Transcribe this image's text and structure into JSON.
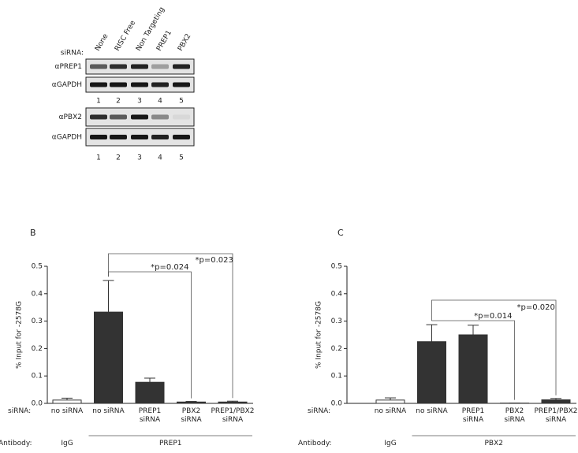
{
  "blot": {
    "siRNA_label": "siRNA:",
    "lanes": [
      "None",
      "RISC Free",
      "Non Targeting",
      "PREP1",
      "PBX2"
    ],
    "panels": [
      {
        "rows": [
          "αPREP1",
          "αGAPDH"
        ],
        "lane_numbers": [
          "1",
          "2",
          "3",
          "4",
          "5"
        ]
      },
      {
        "rows": [
          "αPBX2",
          "αGAPDH"
        ],
        "lane_numbers": [
          "1",
          "2",
          "3",
          "4",
          "5"
        ]
      }
    ]
  },
  "chart_data": [
    {
      "type": "bar",
      "panel": "B",
      "ylabel": "% Input for -2578G",
      "categories": [
        "no siRNA",
        "no siRNA",
        "PREP1\nsiRNA",
        "PBX2\nsiRNA",
        "PREP1/PBX2\nsiRNA"
      ],
      "values": [
        0.012,
        0.333,
        0.077,
        0.005,
        0.005
      ],
      "errors": [
        0.007,
        0.115,
        0.015,
        0.002,
        0.003
      ],
      "colors": [
        "#ffffff",
        "#333333",
        "#333333",
        "#333333",
        "#333333"
      ],
      "ylim": [
        0,
        0.5
      ],
      "yticks": [
        {
          "value": 0,
          "label": "0.0"
        },
        0.1,
        0.2,
        0.3,
        0.4,
        0.5
      ],
      "annotations": [
        "*p=0.023",
        "*p=0.024"
      ],
      "siRNA_label": "siRNA:",
      "antibody_label": "Antibody:",
      "antibodies": [
        "IgG",
        "PREP1"
      ]
    },
    {
      "type": "bar",
      "panel": "C",
      "ylabel": "% Input for -2578G",
      "categories": [
        "no siRNA",
        "no siRNA",
        "PREP1\nsiRNA",
        "PBX2\nsiRNA",
        "PREP1/PBX2\nsiRNA"
      ],
      "values": [
        0.012,
        0.225,
        0.25,
        0.001,
        0.013
      ],
      "errors": [
        0.008,
        0.062,
        0.035,
        0.0,
        0.005
      ],
      "colors": [
        "#ffffff",
        "#333333",
        "#333333",
        "#333333",
        "#333333"
      ],
      "ylim": [
        0,
        0.5
      ],
      "yticks": [
        {
          "value": 0,
          "label": "0.0"
        },
        0.1,
        0.2,
        0.3,
        0.4,
        0.5
      ],
      "annotations": [
        "*p=0.020",
        "*p=0.014"
      ],
      "siRNA_label": "siRNA:",
      "antibody_label": "Antibody:",
      "antibodies": [
        "IgG",
        "PBX2"
      ]
    }
  ]
}
